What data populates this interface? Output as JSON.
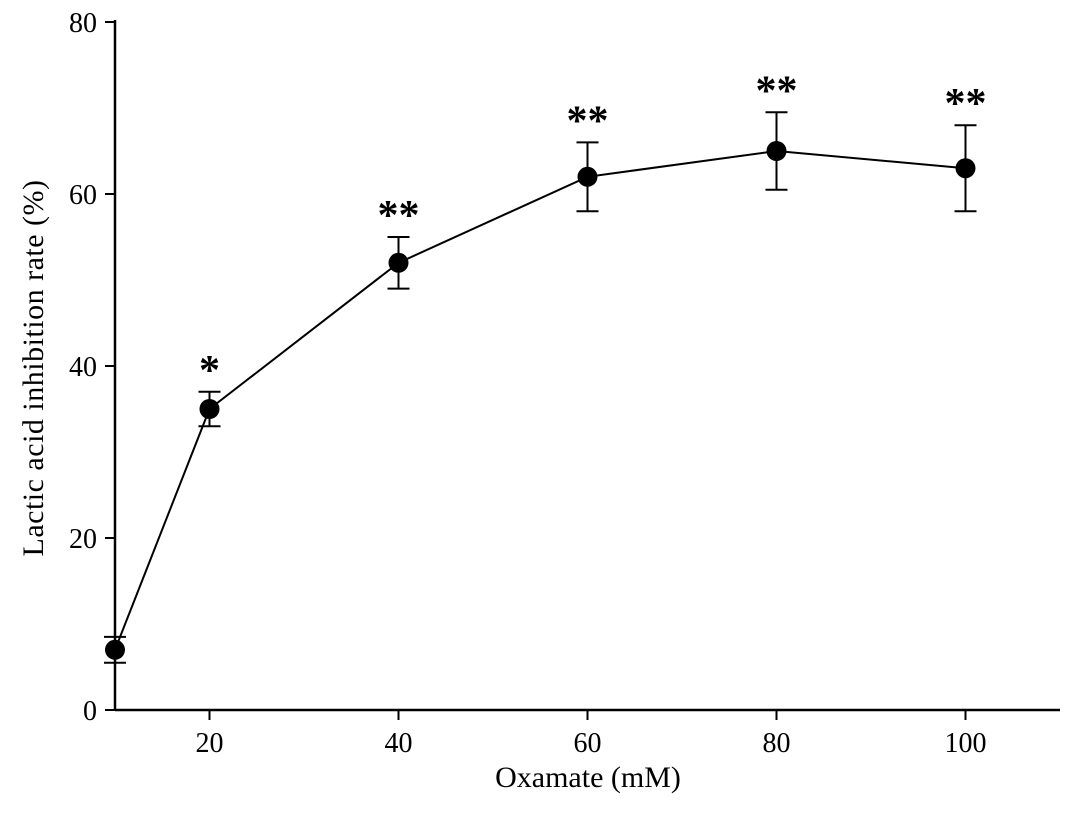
{
  "figure": {
    "background_color": "#ffffff",
    "foreground_color": "#000000"
  },
  "chart_data": {
    "type": "line",
    "title": "",
    "xlabel": "Oxamate (mM)",
    "ylabel": "Lactic acid inhibition rate (%)",
    "x": [
      10,
      20,
      40,
      60,
      80,
      100
    ],
    "y": [
      7,
      35,
      52,
      62,
      65,
      63
    ],
    "yerr": [
      1.5,
      2,
      3,
      4,
      4.5,
      5
    ],
    "annotations": [
      "",
      "*",
      "**",
      "**",
      "**",
      "**"
    ],
    "xticks": [
      20,
      40,
      60,
      80,
      100
    ],
    "yticks": [
      0,
      20,
      40,
      60,
      80
    ],
    "xlim": [
      10,
      110
    ],
    "ylim": [
      0,
      80
    ],
    "grid": false,
    "legend_position": "none",
    "marker": "filled-circle",
    "line_color": "#000000",
    "marker_color": "#000000"
  }
}
